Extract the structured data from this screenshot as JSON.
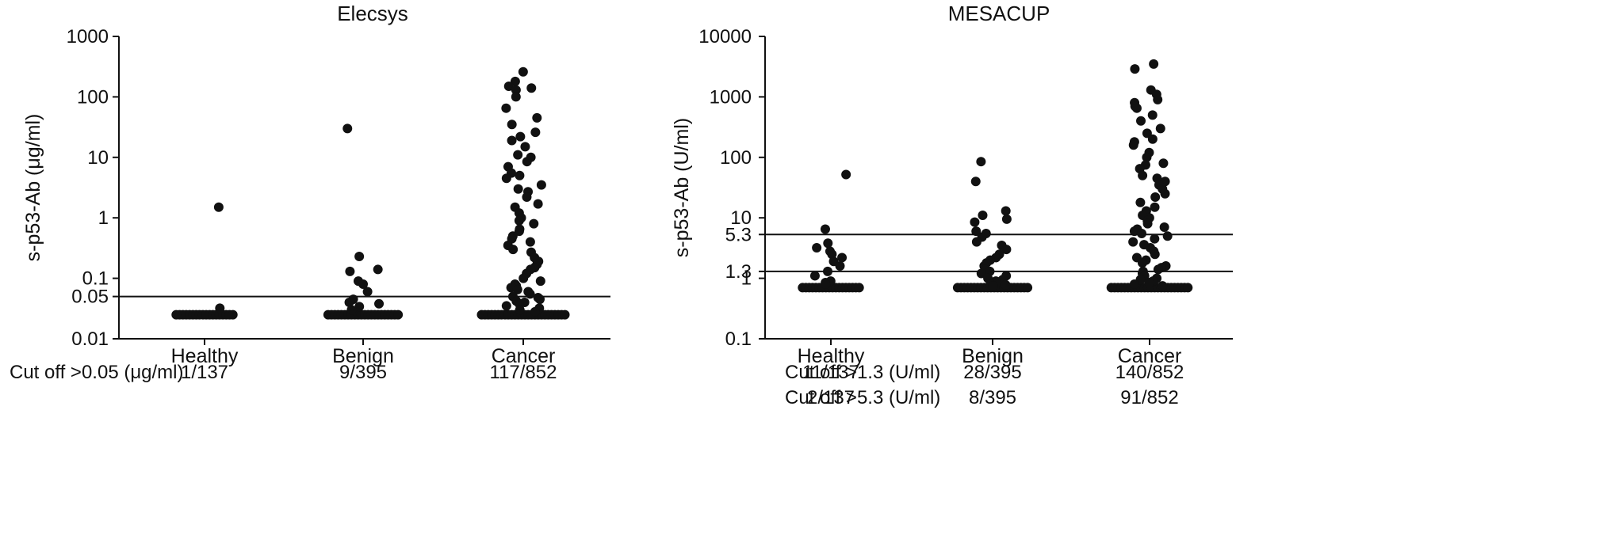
{
  "chart_data": [
    {
      "type": "scatter",
      "subtype": "dot-plot",
      "title": "Elecsys",
      "ylabel": "s-p53-Ab (μg/ml)",
      "yscale": "log",
      "ylim": [
        0.01,
        1000
      ],
      "yticks": [
        0.01,
        0.05,
        0.1,
        1,
        10,
        100,
        1000
      ],
      "ytick_labels": [
        "0.01",
        "0.05",
        "0.1",
        "1",
        "10",
        "100",
        "1000"
      ],
      "grid": false,
      "categories": [
        "Healthy",
        "Benign",
        "Cancer"
      ],
      "cutoff_lines": [
        0.05
      ],
      "cutoff_rows": [
        {
          "label": "Cut off >0.05 (μg/ml)",
          "values": [
            "1/137",
            "9/395",
            "117/852"
          ]
        }
      ],
      "marker_color": "#111111",
      "points": [
        {
          "category": "Healthy",
          "base": {
            "y": 0.025,
            "count": 18
          },
          "values": [
            1.5,
            0.032
          ]
        },
        {
          "category": "Benign",
          "base": {
            "y": 0.025,
            "count": 22
          },
          "values": [
            30,
            0.23,
            0.14,
            0.13,
            0.09,
            0.08,
            0.06,
            0.045,
            0.04,
            0.038,
            0.034,
            0.03
          ]
        },
        {
          "category": "Cancer",
          "base": {
            "y": 0.025,
            "count": 26
          },
          "values": [
            260,
            180,
            150,
            140,
            130,
            100,
            65,
            45,
            35,
            26,
            22,
            19,
            15,
            11,
            10,
            8.5,
            7,
            5.5,
            5,
            4.5,
            3.5,
            3,
            2.7,
            2.2,
            1.7,
            1.5,
            1.2,
            1,
            0.9,
            0.8,
            0.65,
            0.6,
            0.5,
            0.45,
            0.4,
            0.35,
            0.3,
            0.27,
            0.22,
            0.19,
            0.17,
            0.15,
            0.14,
            0.12,
            0.1,
            0.09,
            0.08,
            0.075,
            0.07,
            0.065,
            0.06,
            0.055,
            0.05,
            0.048,
            0.045,
            0.042,
            0.04,
            0.038,
            0.035,
            0.032,
            0.03,
            0.028
          ]
        }
      ]
    },
    {
      "type": "scatter",
      "subtype": "dot-plot",
      "title": "MESACUP",
      "ylabel": "s-p53-Ab (U/ml)",
      "yscale": "log",
      "ylim": [
        0.1,
        10000
      ],
      "yticks": [
        0.1,
        1,
        1.3,
        5.3,
        10,
        100,
        1000,
        10000
      ],
      "ytick_labels": [
        "0.1",
        "1",
        "1.3",
        "5.3",
        "10",
        "100",
        "1000",
        "10000"
      ],
      "grid": false,
      "categories": [
        "Healthy",
        "Benign",
        "Cancer"
      ],
      "cutoff_lines": [
        1.3,
        5.3
      ],
      "cutoff_rows": [
        {
          "label": "Cut off >1.3 (U/ml)",
          "values": [
            "11/137",
            "28/395",
            "140/852"
          ]
        },
        {
          "label": "Cut off >5.3 (U/ml)",
          "values": [
            "2/137",
            "8/395",
            "91/852"
          ]
        }
      ],
      "marker_color": "#111111",
      "points": [
        {
          "category": "Healthy",
          "base": {
            "y": 0.7,
            "count": 18
          },
          "values": [
            52,
            6.5,
            3.8,
            3.2,
            2.8,
            2.5,
            2.2,
            1.9,
            1.6,
            1.3,
            1.1,
            0.9,
            0.85,
            0.8
          ]
        },
        {
          "category": "Benign",
          "base": {
            "y": 0.7,
            "count": 22
          },
          "values": [
            85,
            40,
            13,
            11,
            9.5,
            8.5,
            6,
            5.5,
            4.8,
            4,
            3.5,
            3,
            2.5,
            2.2,
            2,
            1.8,
            1.6,
            1.4,
            1.3,
            1.2,
            1.1,
            1,
            0.95,
            0.9,
            0.85,
            0.8,
            0.78,
            0.75
          ]
        },
        {
          "category": "Cancer",
          "base": {
            "y": 0.7,
            "count": 24
          },
          "values": [
            3500,
            2900,
            1300,
            1100,
            900,
            800,
            700,
            650,
            500,
            400,
            300,
            250,
            200,
            180,
            160,
            120,
            100,
            80,
            75,
            65,
            50,
            45,
            40,
            35,
            30,
            25,
            22,
            18,
            15,
            13,
            11,
            10,
            9,
            8,
            7,
            6.5,
            6,
            5.5,
            5,
            4.5,
            4,
            3.6,
            3.2,
            2.8,
            2.5,
            2.2,
            2,
            1.8,
            1.6,
            1.5,
            1.4,
            1.3,
            1.2,
            1.1,
            1,
            0.95,
            0.9,
            0.85,
            0.8,
            0.75
          ]
        }
      ]
    }
  ]
}
